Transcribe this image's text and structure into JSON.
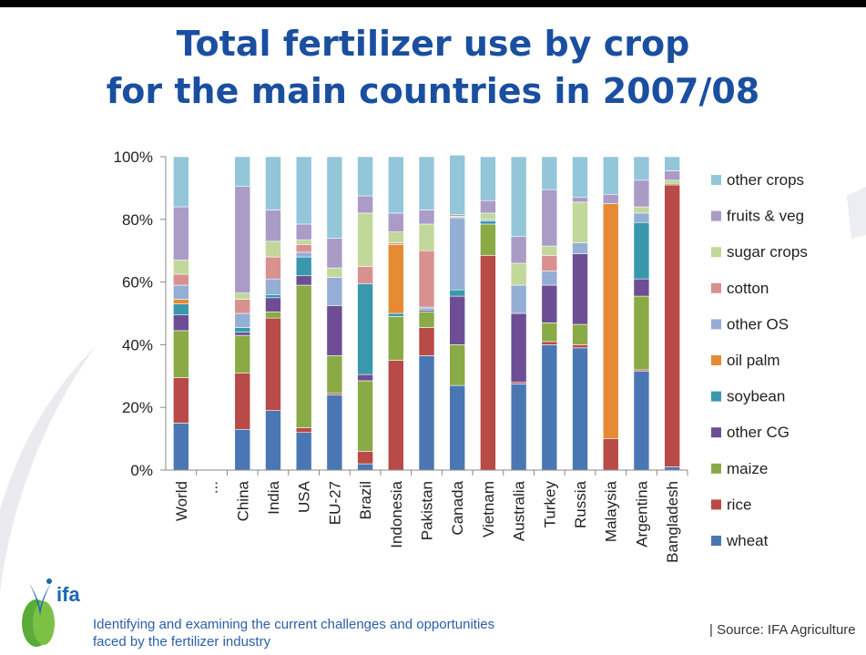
{
  "title": {
    "line1": "Total fertilizer use by crop",
    "line2": "for the main countries in 2007/08"
  },
  "footer": {
    "logo_text": "ifa",
    "tagline_line1": "Identifying and examining the current challenges and opportunities",
    "tagline_line2": "faced by the fertilizer industry",
    "source": "| Source: IFA Agriculture"
  },
  "colors": {
    "title": "#1a4fa0",
    "wheat": "#4a77b4",
    "rice": "#b84a47",
    "maize": "#8aaa46",
    "other CG": "#6d4e94",
    "soybean": "#3a98ad",
    "oil palm": "#e68a34",
    "other OS": "#94aed6",
    "cotton": "#d8918f",
    "sugar crops": "#c1d89a",
    "fruits & veg": "#ab9bc7",
    "other crops": "#93c6d8"
  },
  "chart_data": {
    "type": "bar",
    "stacked": true,
    "percent": true,
    "categories": [
      "World",
      "...",
      "China",
      "India",
      "USA",
      "EU-27",
      "Brazil",
      "Indonesia",
      "Pakistan",
      "Canada",
      "Vietnam",
      "Australia",
      "Turkey",
      "Russia",
      "Malaysia",
      "Argentina",
      "Bangladesh"
    ],
    "ylim": [
      0,
      100
    ],
    "yticks": [
      "0%",
      "20%",
      "40%",
      "60%",
      "80%",
      "100%"
    ],
    "legend_position": "right",
    "series": [
      {
        "name": "wheat",
        "values": [
          15,
          0,
          13,
          19,
          12,
          24,
          2,
          0,
          36.5,
          27,
          0,
          27.5,
          40,
          39,
          0,
          31.5,
          1
        ]
      },
      {
        "name": "rice",
        "values": [
          14.5,
          0,
          18,
          29.5,
          1.5,
          0.5,
          4,
          35,
          9,
          0,
          68.5,
          0.5,
          1,
          1,
          10,
          0.5,
          90
        ]
      },
      {
        "name": "maize",
        "values": [
          15,
          0,
          12,
          2,
          45.5,
          12,
          22.5,
          14,
          5,
          13,
          10,
          0,
          6,
          6.5,
          0,
          23.5,
          0.5
        ]
      },
      {
        "name": "other CG",
        "values": [
          5,
          0,
          1,
          4.5,
          3,
          16,
          2,
          0,
          0.5,
          15.5,
          0,
          22,
          12,
          22.5,
          0,
          5.5,
          0
        ]
      },
      {
        "name": "soybean",
        "values": [
          3.5,
          0,
          1.5,
          1,
          6,
          0,
          29,
          1,
          0.5,
          2,
          1,
          0,
          0,
          0,
          0,
          18,
          0
        ]
      },
      {
        "name": "oil palm",
        "values": [
          1.5,
          0,
          0,
          0,
          0,
          0,
          0,
          22,
          0,
          0,
          0,
          0,
          0,
          0,
          75,
          0,
          0
        ]
      },
      {
        "name": "other OS",
        "values": [
          4.5,
          0,
          4.5,
          5,
          1.5,
          9,
          0,
          0,
          0.5,
          23,
          0.5,
          9,
          4.5,
          3.5,
          0,
          3,
          0
        ]
      },
      {
        "name": "cotton",
        "values": [
          3.5,
          0,
          4.5,
          7,
          2.5,
          0,
          5.5,
          0.5,
          18,
          0,
          0,
          0,
          5,
          0,
          0,
          0,
          0
        ]
      },
      {
        "name": "sugar crops",
        "values": [
          4.5,
          0,
          2,
          5,
          1.5,
          3,
          17,
          3.5,
          8.5,
          0.5,
          2,
          7,
          3,
          13,
          0,
          2,
          1
        ]
      },
      {
        "name": "fruits & veg",
        "values": [
          17,
          0,
          34,
          10,
          5,
          9.5,
          5.5,
          6,
          4.5,
          0.5,
          4,
          8.5,
          18,
          1.5,
          3,
          8.5,
          3
        ]
      },
      {
        "name": "other crops",
        "values": [
          16,
          0,
          9.5,
          17,
          21.5,
          26,
          12.5,
          18,
          17,
          19,
          14,
          25.5,
          10.5,
          13,
          12,
          7.5,
          4.5
        ]
      }
    ]
  }
}
